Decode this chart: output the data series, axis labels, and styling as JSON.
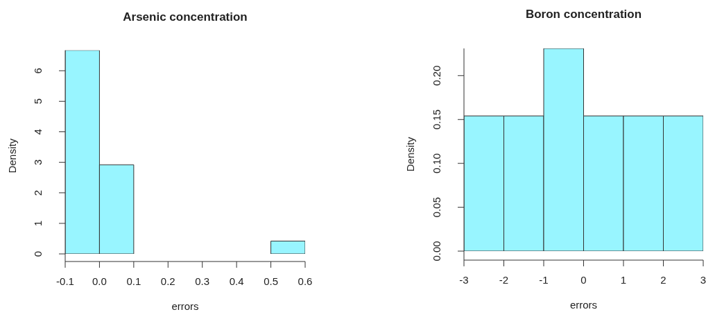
{
  "chart_data": [
    {
      "type": "histogram",
      "title": "Arsenic concentration",
      "xlabel": "errors",
      "ylabel": "Density",
      "bins": [
        -0.1,
        0,
        0.1,
        0.2,
        0.3,
        0.4,
        0.5,
        0.6
      ],
      "values": [
        6.67,
        2.92,
        0,
        0,
        0,
        0,
        0.42
      ],
      "color": "#98f5ff",
      "xlim": [
        -0.1,
        0.6
      ],
      "xticks": [
        -0.1,
        {
          "value": 0,
          "label": "0.0"
        },
        0.1,
        0.2,
        0.3,
        0.4,
        0.5,
        0.6
      ],
      "ylim": [
        0,
        6.67
      ],
      "yticks": [
        0,
        1,
        2,
        3,
        4,
        5,
        6
      ]
    },
    {
      "type": "histogram",
      "title": "Boron concentration",
      "xlabel": "errors",
      "ylabel": "Density",
      "bins": [
        -3,
        -2,
        -1,
        0,
        1,
        2,
        3
      ],
      "values": [
        0.154,
        0.154,
        0.231,
        0.154,
        0.154,
        0.154
      ],
      "color": "#98f5ff",
      "xlim": [
        -3,
        3
      ],
      "xticks": [
        -3,
        -2,
        -1,
        0,
        1,
        2,
        3
      ],
      "ylim": [
        0,
        0.231
      ],
      "yticks": [
        {
          "value": 0,
          "label": "0.00"
        },
        {
          "value": 0.05,
          "label": "0.05"
        },
        {
          "value": 0.1,
          "label": "0.10"
        },
        0.15,
        {
          "value": 0.2,
          "label": "0.20"
        }
      ]
    }
  ]
}
